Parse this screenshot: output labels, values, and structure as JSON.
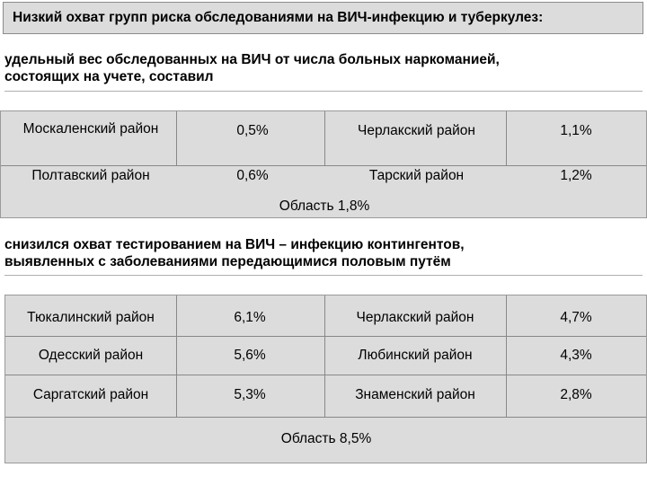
{
  "title": "Низкий охват групп риска обследованиями на ВИЧ-инфекцию и туберкулез:",
  "section1": {
    "text_line1": "удельный вес обследованных  на ВИЧ от числа больных наркоманией,",
    "text_line2": "состоящих на учете, составил",
    "rows": [
      {
        "district_a": "Москаленский район",
        "value_a": "0,5%",
        "district_b": "Черлакский район",
        "value_b": "1,1%"
      },
      {
        "district_a": "Полтавский район",
        "value_a": "0,6%",
        "district_b": "Тарский район",
        "value_b": "1,2%"
      }
    ],
    "total": "Область 1,8%"
  },
  "section2": {
    "text_line1": "снизился охват тестированием на ВИЧ – инфекцию контингентов,",
    "text_line2": "выявленных с заболеваниями передающимися половым путём",
    "rows": [
      {
        "district_a": "Тюкалинский район",
        "value_a": "6,1%",
        "district_b": "Черлакский район",
        "value_b": "4,7%"
      },
      {
        "district_a": "Одесский район",
        "value_a": "5,6%",
        "district_b": "Любинский район",
        "value_b": "4,3%"
      },
      {
        "district_a": "Саргатский район",
        "value_a": "5,3%",
        "district_b": "Знаменский район",
        "value_b": "2,8%"
      }
    ],
    "total": "Область 8,5%"
  }
}
